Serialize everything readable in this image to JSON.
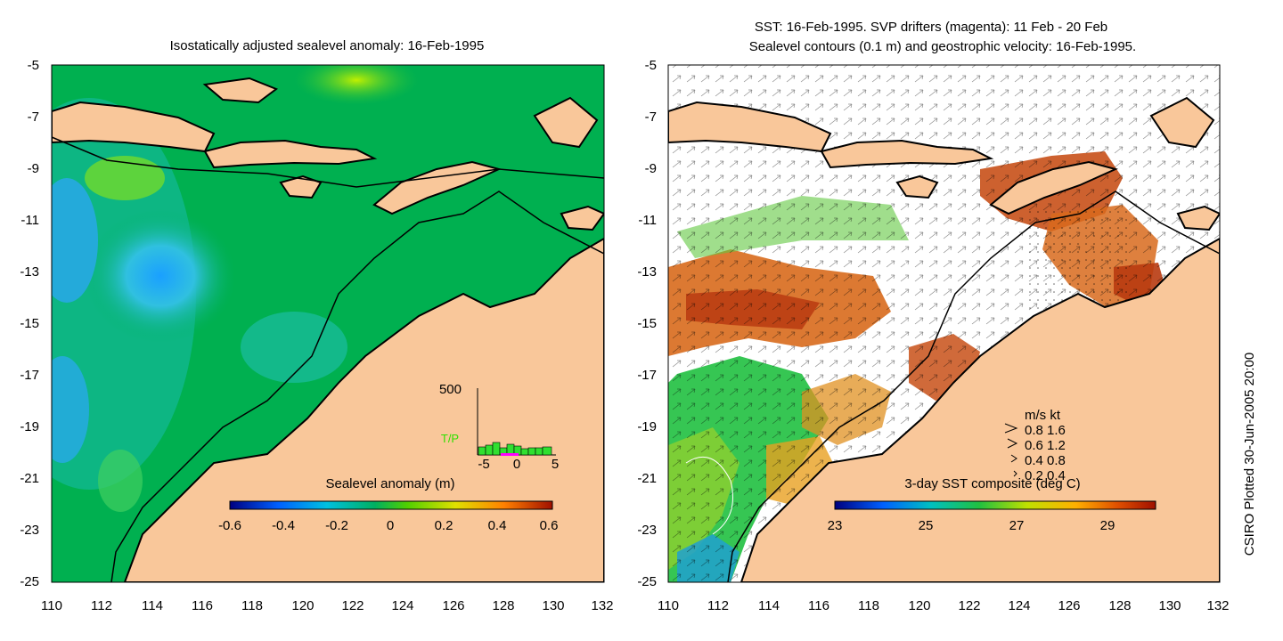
{
  "left_panel": {
    "title": "Isostatically adjusted sealevel anomaly: 16-Feb-1995",
    "colorbar_label": "Sealevel anomaly (m)",
    "colorbar_ticks": [
      "-0.6",
      "-0.4",
      "-0.2",
      "0",
      "0.2",
      "0.4",
      "0.6"
    ],
    "inset": {
      "y_label": "500",
      "series_label": "T/P",
      "x_ticks": [
        "-5",
        "0",
        "5"
      ]
    }
  },
  "right_panel": {
    "title_line1": "SST: 16-Feb-1995. SVP drifters (magenta): 11 Feb - 20 Feb",
    "title_line2": "Sealevel contours (0.1 m) and geostrophic velocity: 16-Feb-1995.",
    "colorbar_label": "3-day SST composite (deg C)",
    "colorbar_ticks": [
      "23",
      "25",
      "27",
      "29"
    ],
    "velocity_legend": {
      "header": "m/s  kt",
      "rows": [
        "0.8  1.6",
        "0.6  1.2",
        "0.4  0.8",
        "0.2  0.4"
      ]
    }
  },
  "axes": {
    "lat_ticks": [
      "-5",
      "-7",
      "-9",
      "-11",
      "-13",
      "-15",
      "-17",
      "-19",
      "-21",
      "-23",
      "-25"
    ],
    "lon_ticks": [
      "110",
      "112",
      "114",
      "116",
      "118",
      "120",
      "122",
      "124",
      "126",
      "128",
      "130",
      "132"
    ]
  },
  "credit": "CSIRO Plotted 30-Jun-2005 20:00",
  "colors": {
    "land": "#f9c79a",
    "coast": "#000000",
    "sealevel_scale": [
      "#000080",
      "#0080ff",
      "#00c0c0",
      "#00b050",
      "#80e000",
      "#ffd000",
      "#ff8000",
      "#b02000"
    ],
    "sst_scale": [
      "#00007f",
      "#0060ff",
      "#00c0c0",
      "#20c040",
      "#c0e000",
      "#ffb000",
      "#e05000",
      "#a01000"
    ]
  }
}
